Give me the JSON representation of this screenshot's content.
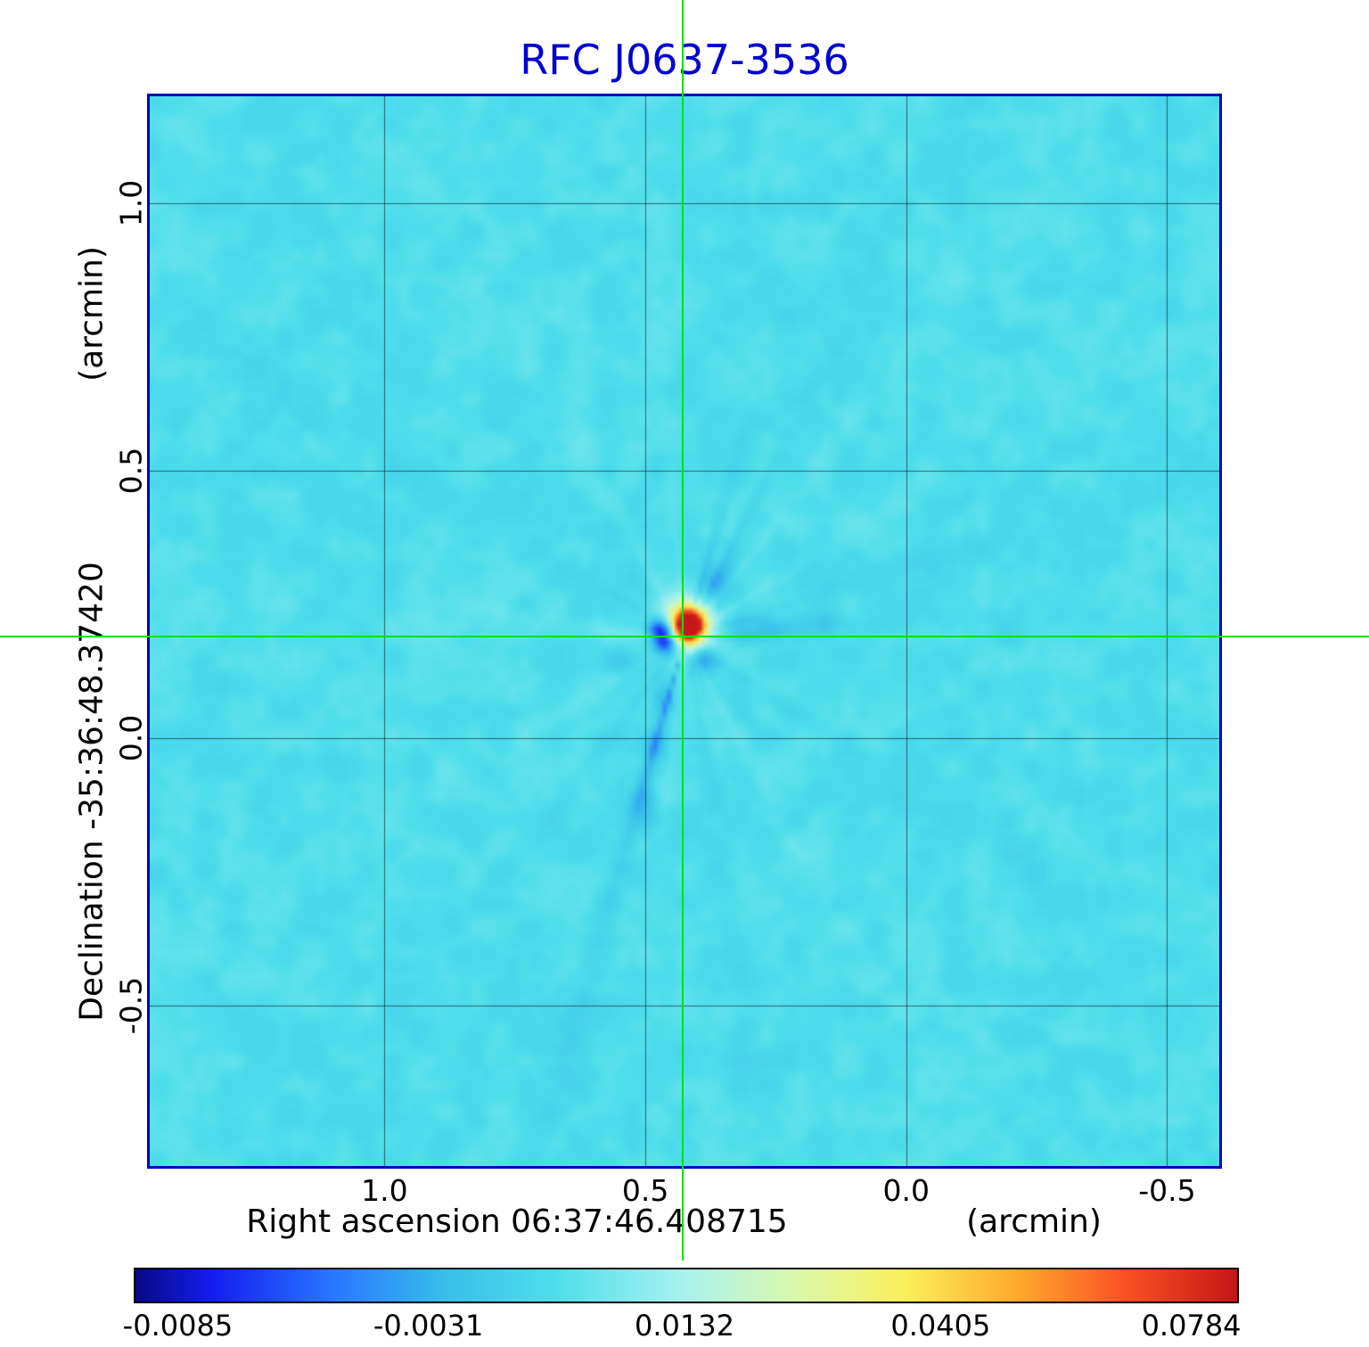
{
  "title": {
    "text": "RFC J0637-3536",
    "color": "#0000cd"
  },
  "chart_data": {
    "type": "heatmap",
    "title": "RFC J0637-3536",
    "x_axis": {
      "title": "Right ascension  06:37:46.408715",
      "label": "Right ascension",
      "coordinate": "06:37:46.408715",
      "unit": "(arcmin)",
      "ticks": [
        {
          "label": "1.0",
          "value": 1.0
        },
        {
          "label": "0.5",
          "value": 0.5
        },
        {
          "label": "0.0",
          "value": 0.0
        },
        {
          "label": "-0.5",
          "value": -0.5
        }
      ],
      "range": [
        1.45,
        -0.6
      ]
    },
    "y_axis": {
      "title": "Declination  -35:36:48.37420",
      "label": "Declination",
      "coordinate": "-35:36:48.37420",
      "unit": "(arcmin)",
      "ticks": [
        {
          "label": "1.0",
          "value": 1.0
        },
        {
          "label": "0.5",
          "value": 0.5
        },
        {
          "label": "0.0",
          "value": 0.0
        },
        {
          "label": "-0.5",
          "value": -0.5
        }
      ],
      "range": [
        1.2,
        -0.8
      ]
    },
    "colorbar": {
      "ticks": [
        {
          "label": "-0.0085",
          "value": -0.0085,
          "pos": 0.04
        },
        {
          "label": "-0.0031",
          "value": -0.0031,
          "pos": 0.2675
        },
        {
          "label": "0.0132",
          "value": 0.0132,
          "pos": 0.5
        },
        {
          "label": "0.0405",
          "value": 0.0405,
          "pos": 0.7325
        },
        {
          "label": "0.0784",
          "value": 0.0784,
          "pos": 0.96
        }
      ],
      "min_value": -0.0085,
      "max_value": 0.0784,
      "colormap": "rainbow"
    },
    "crosshair": {
      "color": "#00e104",
      "x_arcmin": 0.428,
      "y_arcmin": 0.19
    },
    "source_peak": {
      "x_arcmin": 0.42,
      "y_arcmin": 0.21,
      "peak_value": 0.0784
    },
    "grid": {
      "show": true,
      "color": "rgba(0,0,0,0.55)"
    },
    "plot_border_color": "#0000bb",
    "background_color": "#4edee8"
  }
}
